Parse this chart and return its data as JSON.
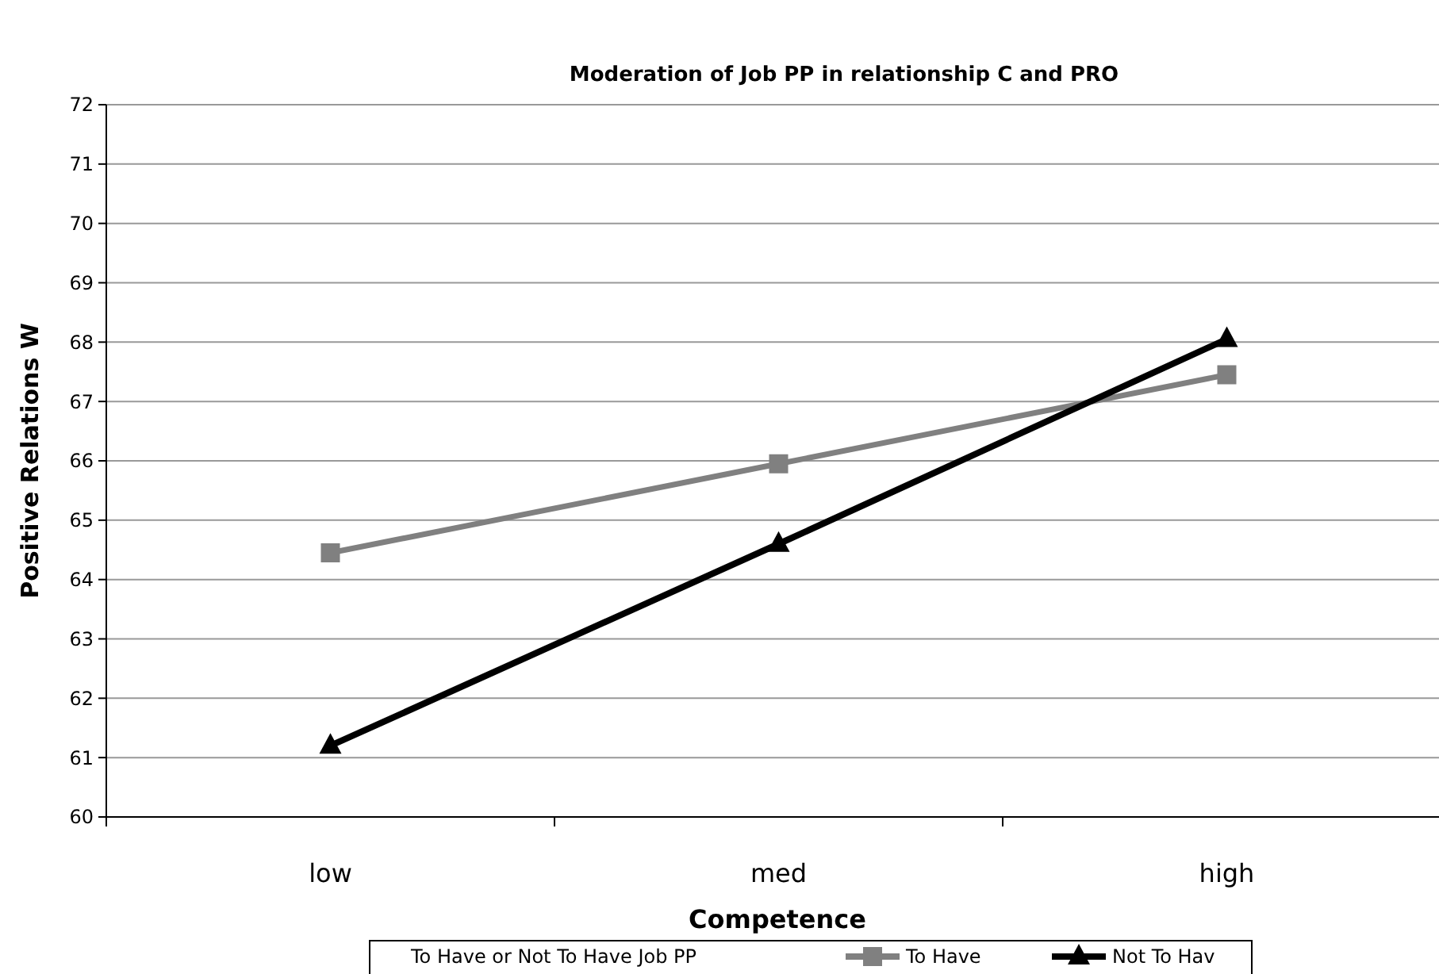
{
  "chart_data": {
    "type": "line",
    "title": "Moderation of Job PP in relationship C and PRO",
    "xlabel": "Competence",
    "ylabel": "Positive Relations W",
    "legend_title": "To Have or Not To Have Job PP",
    "categories": [
      "low",
      "med",
      "high"
    ],
    "series": [
      {
        "name": "To Have",
        "color": "#808080",
        "marker": "square",
        "values": [
          64.45,
          65.95,
          67.45
        ]
      },
      {
        "name": "Not To Hav",
        "color": "#000000",
        "marker": "triangle",
        "values": [
          61.2,
          64.6,
          68.05
        ]
      }
    ],
    "ylim": [
      60,
      72
    ],
    "yticks": [
      60,
      61,
      62,
      63,
      64,
      65,
      66,
      67,
      68,
      69,
      70,
      71,
      72
    ],
    "grid": "y",
    "legend": "bottom",
    "line_style": "solid"
  }
}
